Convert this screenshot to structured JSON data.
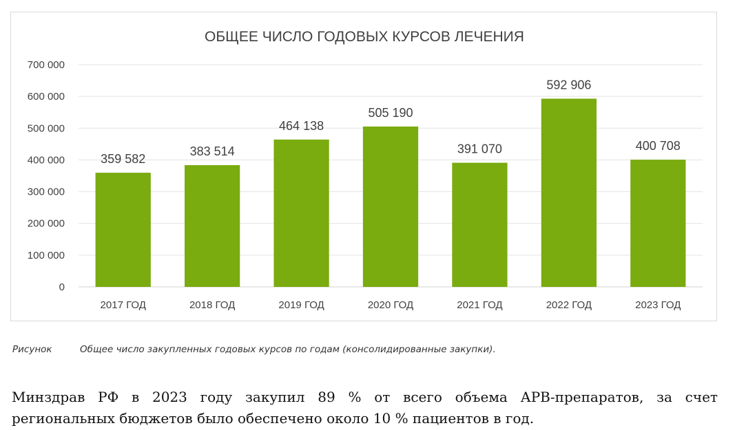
{
  "chart_data": {
    "type": "bar",
    "title": "ОБЩЕЕ ЧИСЛО ГОДОВЫХ КУРСОВ ЛЕЧЕНИЯ",
    "xlabel": "",
    "ylabel": "",
    "categories": [
      "2017 ГОД",
      "2018 ГОД",
      "2019 ГОД",
      "2020 ГОД",
      "2021 ГОД",
      "2022 ГОД",
      "2023 ГОД"
    ],
    "values": [
      359582,
      383514,
      464138,
      505190,
      391070,
      592906,
      400708
    ],
    "value_labels": [
      "359 582",
      "383 514",
      "464 138",
      "505 190",
      "391 070",
      "592 906",
      "400 708"
    ],
    "ylim": [
      0,
      700000
    ],
    "yticks": [
      0,
      100000,
      200000,
      300000,
      400000,
      500000,
      600000,
      700000
    ],
    "ytick_labels": [
      "0",
      "100 000",
      "200 000",
      "300 000",
      "400 000",
      "500 000",
      "600 000",
      "700 000"
    ],
    "grid": true,
    "legend": "none",
    "colors": {
      "bar": "#7aab0f",
      "grid": "#e3e3e3",
      "text": "#404040",
      "title": "#404040"
    }
  },
  "caption": {
    "label": "Рисунок",
    "text": "Общее число закупленных годовых курсов по годам (консолидированные закупки)."
  },
  "body": {
    "line1": "Минздрав РФ в 2023 году закупил 89 % от всего объема АРВ-препаратов, за счет",
    "line2": "региональных бюджетов было обеспечено около 10 % пациентов в год."
  }
}
